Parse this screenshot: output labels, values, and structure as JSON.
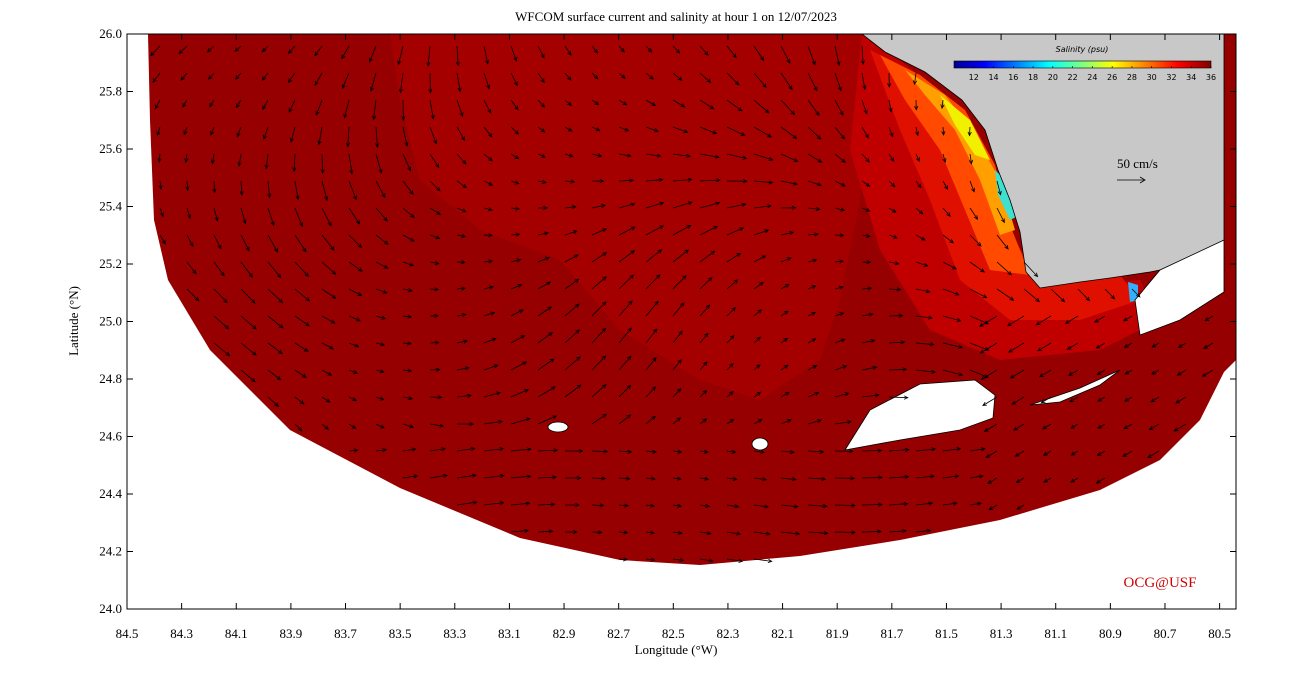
{
  "chart_data": {
    "type": "map",
    "title": "WFCOM surface current and salinity at hour 1 on 12/07/2023",
    "x_label": "Longitude (°W)",
    "y_label": "Latitude (°N)",
    "xlim": [
      84.5,
      80.44
    ],
    "ylim": [
      24,
      26
    ],
    "xticks": [
      84.5,
      84.3,
      84.1,
      83.9,
      83.7,
      83.5,
      83.3,
      83.1,
      82.9,
      82.7,
      82.5,
      82.3,
      82.1,
      81.9,
      81.7,
      81.5,
      81.3,
      81.1,
      80.9,
      80.7,
      80.5
    ],
    "yticks": [
      {
        "value": 24,
        "label": "24.0"
      },
      24.2,
      24.4,
      24.6,
      24.8,
      {
        "value": 25,
        "label": "25.0"
      },
      25.2,
      25.4,
      25.6,
      25.8,
      {
        "value": 26,
        "label": "26.0"
      }
    ],
    "colorbar": {
      "label": "Salinity (psu)",
      "lim": [
        10,
        36
      ],
      "ticks": [
        12,
        14,
        16,
        18,
        20,
        22,
        24,
        26,
        28,
        30,
        32,
        34,
        36
      ]
    },
    "scale_label": "50 cm/s",
    "credit": "OCG@USF"
  }
}
